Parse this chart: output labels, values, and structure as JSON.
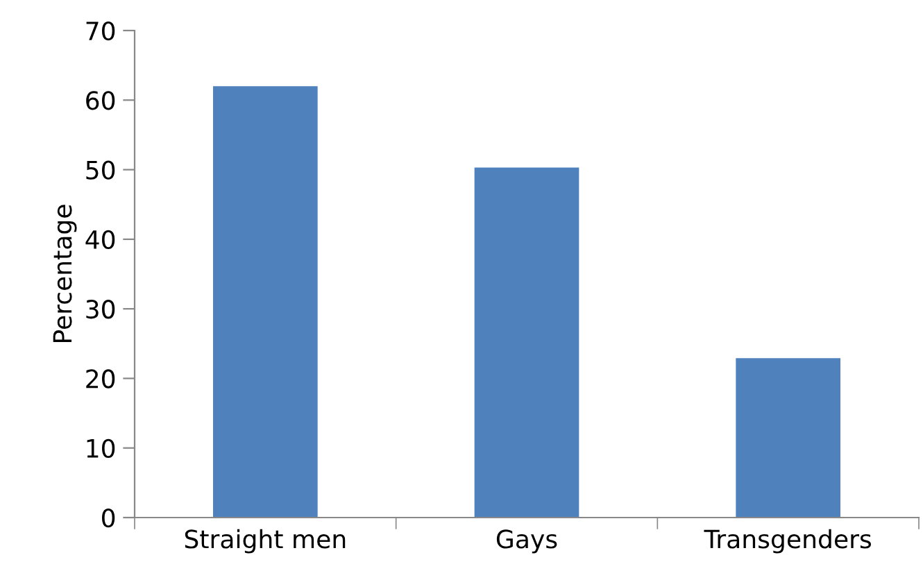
{
  "chart_data": {
    "type": "bar",
    "ylabel": "Percentage",
    "categories": [
      "Straight men",
      "Gays",
      "Transgenders"
    ],
    "values": [
      62,
      50.3,
      22.9
    ],
    "color": "#4f81bd",
    "ylim": [
      0,
      70
    ],
    "yticks": [
      0,
      10,
      20,
      30,
      40,
      50,
      60,
      70
    ],
    "grid": false,
    "legend": false
  }
}
